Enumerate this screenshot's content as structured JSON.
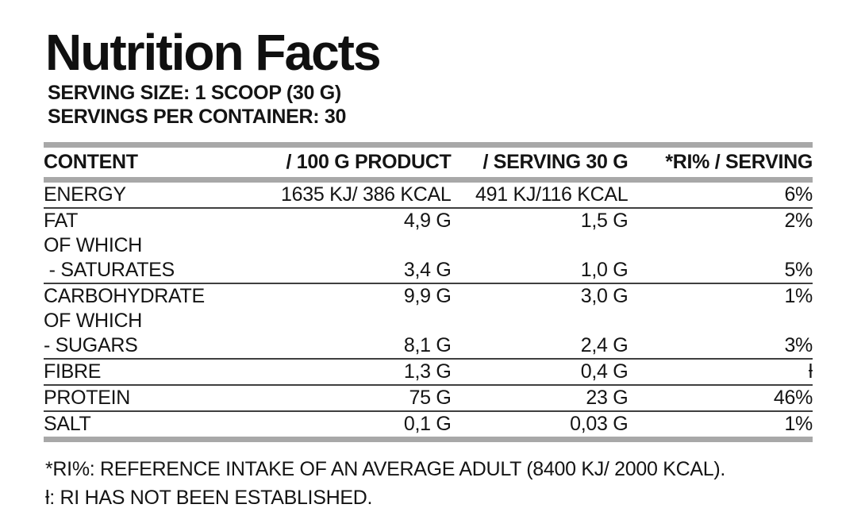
{
  "title": "Nutrition Facts",
  "serving_info": {
    "serving_size_line": "SERVING SIZE: 1 SCOOP (30 G)",
    "servings_per_container_line": "SERVINGS PER CONTAINER: 30"
  },
  "table": {
    "headers": [
      "CONTENT",
      "/ 100 G PRODUCT",
      "/ SERVING 30 G",
      "*RI% / SERVING"
    ],
    "rows": [
      {
        "name": "ENERGY",
        "per_100g": "1635 KJ/ 386 KCAL",
        "per_serving": "491 KJ/116 KCAL",
        "ri": "6%",
        "divider_after": true
      },
      {
        "name": "FAT",
        "per_100g": "4,9 G",
        "per_serving": "1,5 G",
        "ri": "2%",
        "divider_after": false
      },
      {
        "name": "OF WHICH",
        "per_100g": "",
        "per_serving": "",
        "ri": "",
        "divider_after": false
      },
      {
        "name": " - SATURATES",
        "per_100g": "3,4 G",
        "per_serving": "1,0 G",
        "ri": "5%",
        "divider_after": true
      },
      {
        "name": "CARBOHYDRATE",
        "per_100g": "9,9 G",
        "per_serving": "3,0 G",
        "ri": "1%",
        "divider_after": false
      },
      {
        "name": "OF WHICH",
        "per_100g": "",
        "per_serving": "",
        "ri": "",
        "divider_after": false
      },
      {
        "name": "- SUGARS",
        "per_100g": "8,1 G",
        "per_serving": "2,4 G",
        "ri": "3%",
        "divider_after": true
      },
      {
        "name": "FIBRE",
        "per_100g": "1,3 G",
        "per_serving": "0,4 G",
        "ri": "ƚ",
        "divider_after": true
      },
      {
        "name": "PROTEIN",
        "per_100g": "75 G",
        "per_serving": "23 G",
        "ri": "46%",
        "divider_after": true
      },
      {
        "name": "SALT",
        "per_100g": "0,1 G",
        "per_serving": "0,03 G",
        "ri": "1%",
        "divider_after": false
      }
    ]
  },
  "footnotes": [
    "*RI%: REFERENCE INTAKE OF AN AVERAGE ADULT (8400 KJ/ 2000 KCAL).",
    "ƚ: RI HAS NOT BEEN ESTABLISHED."
  ],
  "colors": {
    "text": "#141414",
    "thick_bar": "#a8a8a8",
    "thin_rule": "#3f3f3f",
    "background": "#ffffff"
  }
}
